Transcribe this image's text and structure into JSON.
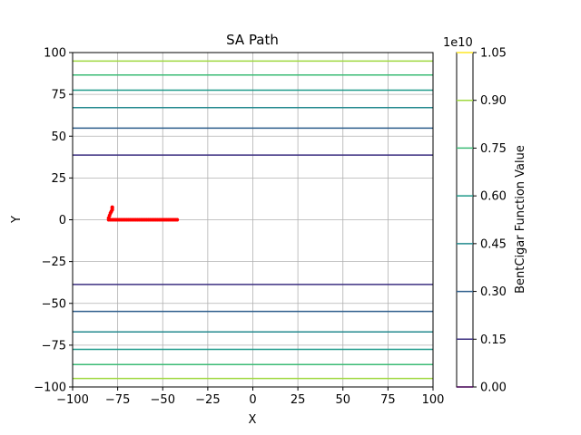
{
  "chart_data": {
    "type": "contour",
    "title": "SA Path",
    "xlabel": "X",
    "ylabel": "Y",
    "xlim": [
      -100,
      100
    ],
    "ylim": [
      -100,
      100
    ],
    "xticks": [
      -100,
      -75,
      -50,
      -25,
      0,
      25,
      50,
      75,
      100
    ],
    "yticks": [
      -100,
      -75,
      -50,
      -25,
      0,
      25,
      50,
      75,
      100
    ],
    "xtick_labels": [
      "−100",
      "−75",
      "−50",
      "−25",
      "0",
      "25",
      "50",
      "75",
      "100"
    ],
    "ytick_labels": [
      "−100",
      "−75",
      "−50",
      "−25",
      "0",
      "25",
      "50",
      "75",
      "100"
    ],
    "grid": true,
    "contour_levels": [
      {
        "level": 0.15,
        "color": "#3b2f80",
        "y": [
          38.7,
          -38.7
        ]
      },
      {
        "level": 0.3,
        "color": "#2e5e8c",
        "y": [
          54.8,
          -54.8
        ]
      },
      {
        "level": 0.45,
        "color": "#23898e",
        "y": [
          67.1,
          -67.1
        ]
      },
      {
        "level": 0.6,
        "color": "#1f9a8a",
        "y": [
          77.5,
          -77.5
        ]
      },
      {
        "level": 0.75,
        "color": "#3bbb75",
        "y": [
          86.6,
          -86.6
        ]
      },
      {
        "level": 0.9,
        "color": "#9fd83f",
        "y": [
          94.9,
          -94.9
        ]
      }
    ],
    "path": {
      "color": "#ff0000",
      "x": [
        -42,
        -43,
        -44,
        -45,
        -46,
        -47,
        -48,
        -49,
        -50,
        -51,
        -52,
        -53,
        -54,
        -55,
        -56,
        -57,
        -58,
        -59,
        -60,
        -61,
        -62,
        -63,
        -64,
        -65,
        -66,
        -67,
        -68,
        -69,
        -70,
        -71,
        -72,
        -73,
        -74,
        -75,
        -76,
        -77,
        -78,
        -79,
        -80,
        -80,
        -79.5,
        -79,
        -78.5,
        -78,
        -78,
        -78
      ],
      "y": [
        0,
        0,
        0,
        0,
        0,
        0,
        0,
        0,
        0,
        0,
        0,
        0,
        0,
        0,
        0,
        0,
        0,
        0,
        0,
        0,
        0,
        0,
        0,
        0,
        0,
        0,
        0,
        0,
        0,
        0,
        0,
        0,
        0,
        0,
        0,
        0,
        0,
        0,
        0,
        1,
        2.5,
        4,
        5,
        6,
        7,
        7.5
      ]
    },
    "colorbar": {
      "label": "BentCigar Function Value",
      "exponent_label": "1e10",
      "min": 0,
      "max": 1.05,
      "ticks": [
        0.0,
        0.15,
        0.3,
        0.45,
        0.6,
        0.75,
        0.9,
        1.05
      ],
      "tick_labels": [
        "0.00",
        "0.15",
        "0.30",
        "0.45",
        "0.60",
        "0.75",
        "0.90",
        "1.05"
      ],
      "tick_colors": [
        "#440154",
        "#3b2f80",
        "#2e5e8c",
        "#23898e",
        "#1f9a8a",
        "#3bbb75",
        "#9fd83f",
        "#fde725"
      ]
    }
  }
}
